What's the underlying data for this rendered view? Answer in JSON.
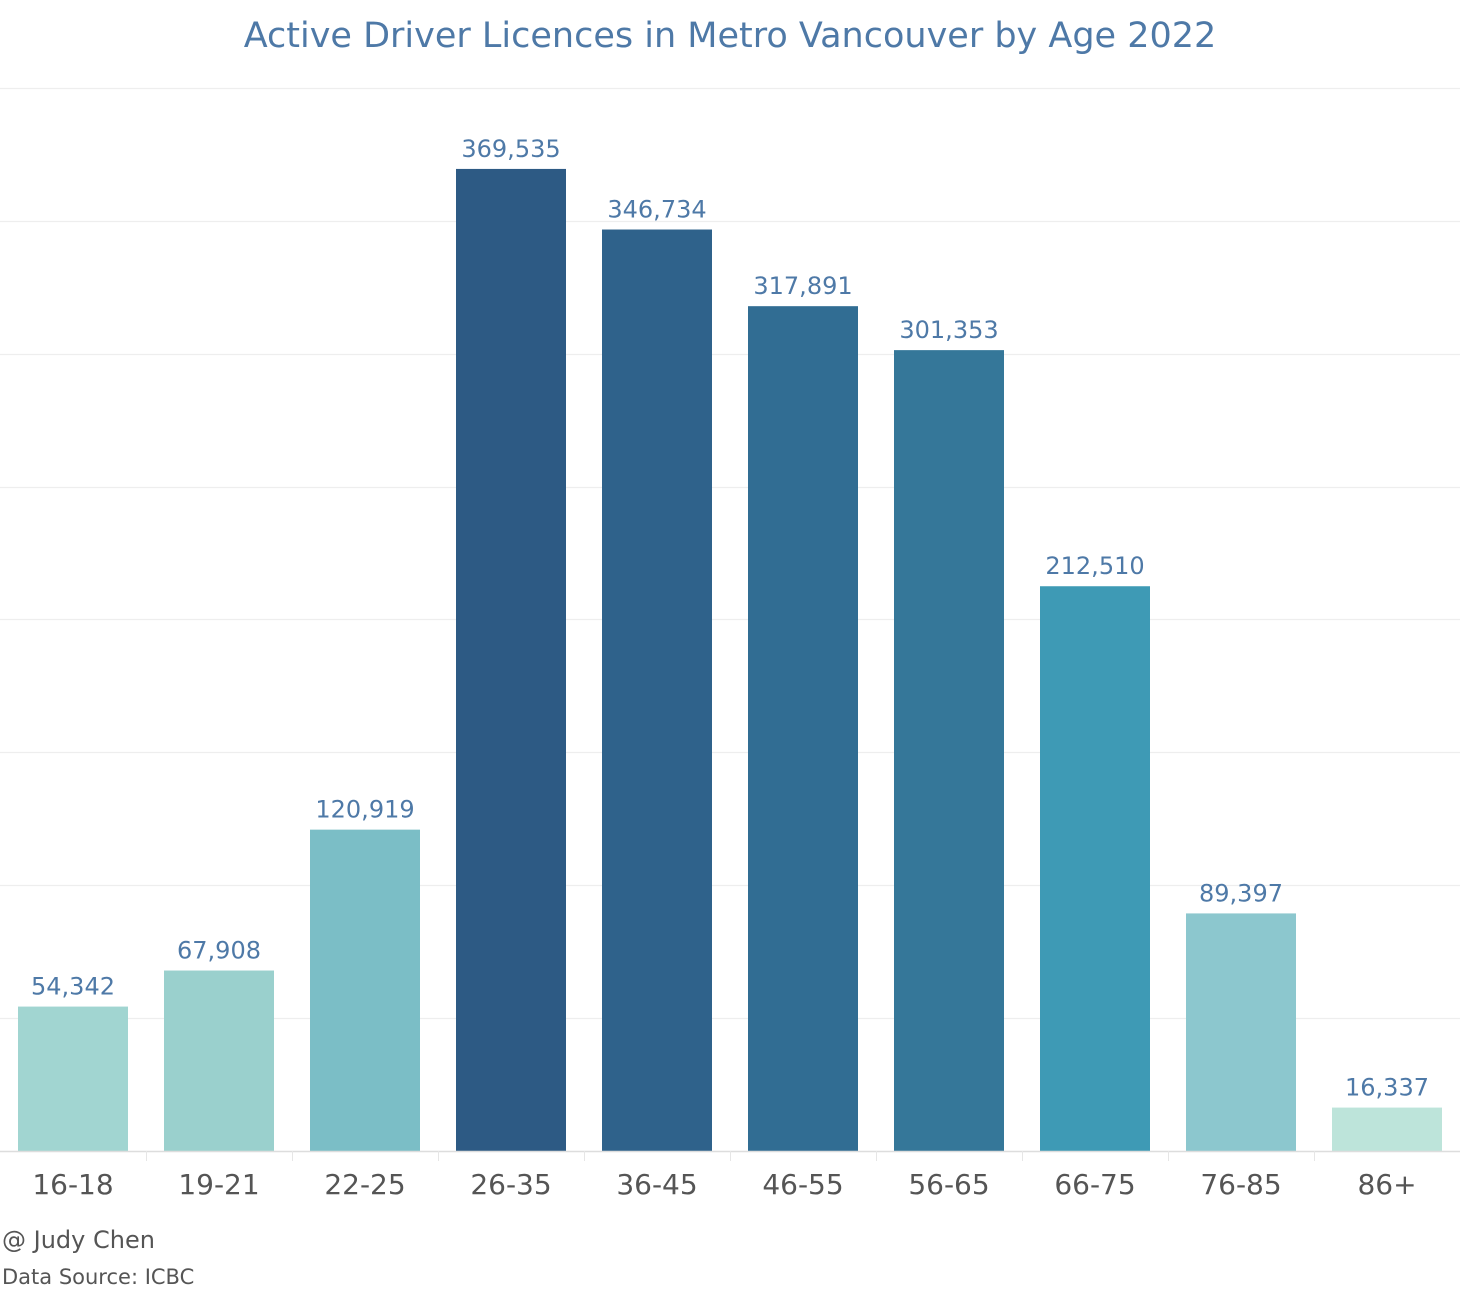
{
  "chart_data": {
    "type": "bar",
    "title": "Active Driver Licences in Metro Vancouver by Age 2022",
    "xlabel": "",
    "ylabel": "",
    "categories": [
      "16-18",
      "19-21",
      "22-25",
      "26-35",
      "36-45",
      "46-55",
      "56-65",
      "66-75",
      "76-85",
      "86+"
    ],
    "values": [
      54342,
      67908,
      120919,
      369535,
      346734,
      317891,
      301353,
      212510,
      89397,
      16337
    ],
    "value_labels": [
      "54,342",
      "67,908",
      "120,919",
      "369,535",
      "346,734",
      "317,891",
      "301,353",
      "212,510",
      "89,397",
      "16,337"
    ],
    "bar_colors": [
      "#a1d5d1",
      "#9ad0cd",
      "#7bbec6",
      "#2d5a84",
      "#2f628b",
      "#316d93",
      "#357799",
      "#3e9ab5",
      "#8cc7ce",
      "#bde4da"
    ],
    "ylim": [
      0,
      400000
    ],
    "gridlines": [
      50000,
      100000,
      150000,
      200000,
      250000,
      300000,
      350000,
      400000
    ],
    "grid": true,
    "y_axis_labels_shown": false
  },
  "footer": {
    "author": "@ Judy Chen",
    "source": "Data Source: ICBC"
  },
  "colors": {
    "title": "#4e79a7",
    "value_label": "#4e79a7",
    "tick_label": "#555555",
    "grid": "#eeeeee"
  }
}
